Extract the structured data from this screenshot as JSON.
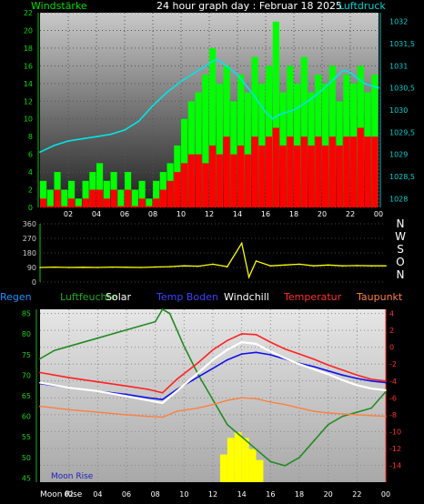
{
  "header": {
    "left_label": "Windstärke",
    "title": "24 hour graph day : Februar 18 2025",
    "right_label": "Luftdruck"
  },
  "direction_letters": [
    "N",
    "W",
    "S",
    "O",
    "N"
  ],
  "legend": {
    "regen": "Regen",
    "luftfeuchte": "Luftfeuchte",
    "solar": "Solar",
    "temp_boden": "Temp Boden",
    "windchill": "Windchill",
    "temperatur": "Temperatur",
    "taupunkt": "Taupunkt"
  },
  "moon_label": "Moon Rise",
  "colors": {
    "wind_gust": "#00ff00",
    "wind_avg": "#ff0000",
    "pressure": "#00e5e5",
    "direction": "#ffff00",
    "humidity": "#228b22",
    "solar": "#ffff00",
    "temp_boden": "#1010ee",
    "windchill": "#ffffff",
    "temperatur": "#ff2020",
    "taupunkt": "#ff7f3f"
  },
  "chart_data": [
    {
      "type": "bar",
      "name_left": "Windstärke",
      "name_right": "Luftdruck",
      "x_ticks": [
        "02",
        "04",
        "06",
        "08",
        "10",
        "12",
        "14",
        "16",
        "18",
        "20",
        "22",
        "00"
      ],
      "xlim": [
        0,
        24
      ],
      "ylim_left": [
        0,
        22
      ],
      "yticks_left": [
        0,
        2,
        4,
        6,
        8,
        10,
        12,
        14,
        16,
        18,
        20,
        22
      ],
      "ylim_right": [
        1027.8,
        1032.2
      ],
      "yticks_right": [
        "1028",
        "1028,5",
        "1029",
        "1029,5",
        "1030",
        "1030,5",
        "1031",
        "1031,5",
        "1032"
      ],
      "yticks_right_values": [
        1028,
        1028.5,
        1029,
        1029.5,
        1030,
        1030.5,
        1031,
        1031.5,
        1032
      ],
      "gust_series": [
        [
          0,
          3
        ],
        [
          0.5,
          2
        ],
        [
          1,
          4
        ],
        [
          1.5,
          2
        ],
        [
          2,
          3
        ],
        [
          2.5,
          1
        ],
        [
          3,
          3
        ],
        [
          3.5,
          4
        ],
        [
          4,
          5
        ],
        [
          4.5,
          3
        ],
        [
          5,
          4
        ],
        [
          5.5,
          2
        ],
        [
          6,
          4
        ],
        [
          6.5,
          2
        ],
        [
          7,
          3
        ],
        [
          7.5,
          1
        ],
        [
          8,
          3
        ],
        [
          8.5,
          4
        ],
        [
          9,
          5
        ],
        [
          9.5,
          7
        ],
        [
          10,
          10
        ],
        [
          10.5,
          12
        ],
        [
          11,
          13
        ],
        [
          11.5,
          15
        ],
        [
          12,
          18
        ],
        [
          12.5,
          14
        ],
        [
          13,
          16
        ],
        [
          13.5,
          12
        ],
        [
          14,
          15
        ],
        [
          14.5,
          13
        ],
        [
          15,
          17
        ],
        [
          15.5,
          14
        ],
        [
          16,
          16
        ],
        [
          16.5,
          21
        ],
        [
          17,
          13
        ],
        [
          17.5,
          16
        ],
        [
          18,
          14
        ],
        [
          18.5,
          17
        ],
        [
          19,
          13
        ],
        [
          19.5,
          15
        ],
        [
          20,
          14
        ],
        [
          20.5,
          16
        ],
        [
          21,
          12
        ],
        [
          21.5,
          15
        ],
        [
          22,
          14
        ],
        [
          22.5,
          16
        ],
        [
          23,
          13
        ],
        [
          23.5,
          15
        ]
      ],
      "avg_series": [
        [
          0,
          1
        ],
        [
          0.5,
          0
        ],
        [
          1,
          2
        ],
        [
          1.5,
          0
        ],
        [
          2,
          1
        ],
        [
          2.5,
          0
        ],
        [
          3,
          1
        ],
        [
          3.5,
          2
        ],
        [
          4,
          2
        ],
        [
          4.5,
          1
        ],
        [
          5,
          2
        ],
        [
          5.5,
          0
        ],
        [
          6,
          2
        ],
        [
          6.5,
          0
        ],
        [
          7,
          1
        ],
        [
          7.5,
          0
        ],
        [
          8,
          1
        ],
        [
          8.5,
          2
        ],
        [
          9,
          3
        ],
        [
          9.5,
          4
        ],
        [
          10,
          5
        ],
        [
          10.5,
          6
        ],
        [
          11,
          6
        ],
        [
          11.5,
          5
        ],
        [
          12,
          7
        ],
        [
          12.5,
          6
        ],
        [
          13,
          8
        ],
        [
          13.5,
          6
        ],
        [
          14,
          7
        ],
        [
          14.5,
          6
        ],
        [
          15,
          8
        ],
        [
          15.5,
          7
        ],
        [
          16,
          8
        ],
        [
          16.5,
          9
        ],
        [
          17,
          7
        ],
        [
          17.5,
          8
        ],
        [
          18,
          7
        ],
        [
          18.5,
          8
        ],
        [
          19,
          7
        ],
        [
          19.5,
          8
        ],
        [
          20,
          7
        ],
        [
          20.5,
          8
        ],
        [
          21,
          7
        ],
        [
          21.5,
          8
        ],
        [
          22,
          8
        ],
        [
          22.5,
          9
        ],
        [
          23,
          8
        ],
        [
          23.5,
          8
        ]
      ],
      "pressure_series": [
        [
          0,
          1029.05
        ],
        [
          1,
          1029.2
        ],
        [
          2,
          1029.3
        ],
        [
          3,
          1029.35
        ],
        [
          4,
          1029.4
        ],
        [
          5,
          1029.45
        ],
        [
          6,
          1029.55
        ],
        [
          7,
          1029.75
        ],
        [
          8,
          1030.1
        ],
        [
          9,
          1030.4
        ],
        [
          10,
          1030.65
        ],
        [
          11,
          1030.85
        ],
        [
          12,
          1031.05
        ],
        [
          12.5,
          1031.15
        ],
        [
          13,
          1031.05
        ],
        [
          14,
          1030.8
        ],
        [
          15,
          1030.4
        ],
        [
          16,
          1029.95
        ],
        [
          16.5,
          1029.8
        ],
        [
          17,
          1029.9
        ],
        [
          18,
          1030.0
        ],
        [
          19,
          1030.2
        ],
        [
          20,
          1030.45
        ],
        [
          21,
          1030.75
        ],
        [
          21.5,
          1030.9
        ],
        [
          22,
          1030.85
        ],
        [
          23,
          1030.6
        ],
        [
          24,
          1030.5
        ]
      ]
    },
    {
      "type": "scatter",
      "name": "Windrichtung",
      "ylim": [
        0,
        360
      ],
      "yticks": [
        0,
        90,
        180,
        270,
        360
      ],
      "series": [
        [
          0,
          90
        ],
        [
          1,
          92
        ],
        [
          2,
          90
        ],
        [
          3,
          91
        ],
        [
          4,
          90
        ],
        [
          5,
          92
        ],
        [
          6,
          91
        ],
        [
          7,
          90
        ],
        [
          8,
          93
        ],
        [
          9,
          95
        ],
        [
          10,
          100
        ],
        [
          11,
          98
        ],
        [
          12,
          110
        ],
        [
          13,
          95
        ],
        [
          14,
          240
        ],
        [
          14.5,
          30
        ],
        [
          15,
          130
        ],
        [
          16,
          100
        ],
        [
          17,
          105
        ],
        [
          18,
          110
        ],
        [
          19,
          100
        ],
        [
          20,
          105
        ],
        [
          21,
          100
        ],
        [
          22,
          102
        ],
        [
          23,
          100
        ],
        [
          24,
          100
        ]
      ]
    },
    {
      "type": "line",
      "x_ticks": [
        "02",
        "04",
        "06",
        "08",
        "10",
        "12",
        "14",
        "16",
        "18",
        "20",
        "22",
        "00"
      ],
      "ylim_left": [
        44,
        86
      ],
      "yticks_left": [
        45,
        50,
        55,
        60,
        65,
        70,
        75,
        80,
        85
      ],
      "ylim_right": [
        -16,
        4.5
      ],
      "yticks_right": [
        -14,
        -12,
        -10,
        -8,
        -6,
        -4,
        -2,
        0,
        2,
        4
      ],
      "humidity": [
        [
          0,
          74
        ],
        [
          1,
          76
        ],
        [
          2,
          77
        ],
        [
          3,
          78
        ],
        [
          4,
          79
        ],
        [
          5,
          80
        ],
        [
          6,
          81
        ],
        [
          7,
          82
        ],
        [
          8,
          83
        ],
        [
          8.5,
          86
        ],
        [
          9,
          85
        ],
        [
          10,
          77
        ],
        [
          11,
          70
        ],
        [
          12,
          64
        ],
        [
          13,
          58
        ],
        [
          14,
          55
        ],
        [
          15,
          52
        ],
        [
          16,
          49
        ],
        [
          17,
          48
        ],
        [
          18,
          50
        ],
        [
          19,
          54
        ],
        [
          20,
          58
        ],
        [
          21,
          60
        ],
        [
          22,
          61
        ],
        [
          23,
          62
        ],
        [
          24,
          66
        ]
      ],
      "solar": [
        [
          12,
          0
        ],
        [
          12.5,
          5
        ],
        [
          13,
          8
        ],
        [
          13.5,
          9
        ],
        [
          14,
          8
        ],
        [
          14.5,
          6
        ],
        [
          15,
          4
        ],
        [
          15.5,
          0
        ]
      ],
      "temp_boden": [
        [
          0,
          -4.3
        ],
        [
          2,
          -4.8
        ],
        [
          4,
          -5.2
        ],
        [
          6,
          -5.6
        ],
        [
          7.5,
          -6.0
        ],
        [
          8.5,
          -6.2
        ],
        [
          9.5,
          -5.0
        ],
        [
          11,
          -3.5
        ],
        [
          12,
          -2.5
        ],
        [
          13,
          -1.5
        ],
        [
          14,
          -0.8
        ],
        [
          15,
          -0.6
        ],
        [
          16,
          -0.9
        ],
        [
          17,
          -1.4
        ],
        [
          18,
          -1.9
        ],
        [
          19,
          -2.3
        ],
        [
          20,
          -2.8
        ],
        [
          21,
          -3.3
        ],
        [
          22,
          -3.7
        ],
        [
          23,
          -4.0
        ],
        [
          24,
          -4.2
        ]
      ],
      "windchill": [
        [
          0,
          -4.2
        ],
        [
          2,
          -4.8
        ],
        [
          4,
          -5.2
        ],
        [
          6,
          -5.8
        ],
        [
          7.5,
          -6.3
        ],
        [
          8.5,
          -6.6
        ],
        [
          9.5,
          -5.2
        ],
        [
          11,
          -3.0
        ],
        [
          12,
          -1.5
        ],
        [
          13,
          -0.3
        ],
        [
          14,
          0.6
        ],
        [
          15,
          0.4
        ],
        [
          16,
          -0.5
        ],
        [
          17,
          -1.3
        ],
        [
          18,
          -2.0
        ],
        [
          19,
          -2.6
        ],
        [
          20,
          -3.2
        ],
        [
          21,
          -3.9
        ],
        [
          22,
          -4.5
        ],
        [
          23,
          -4.9
        ],
        [
          24,
          -5.1
        ]
      ],
      "temperatur": [
        [
          0,
          -3.0
        ],
        [
          2,
          -3.6
        ],
        [
          4,
          -4.1
        ],
        [
          6,
          -4.6
        ],
        [
          7.5,
          -5.0
        ],
        [
          8.5,
          -5.4
        ],
        [
          9.5,
          -3.8
        ],
        [
          11,
          -1.8
        ],
        [
          12,
          -0.3
        ],
        [
          13,
          0.8
        ],
        [
          14,
          1.6
        ],
        [
          15,
          1.5
        ],
        [
          16,
          0.6
        ],
        [
          17,
          -0.2
        ],
        [
          18,
          -0.8
        ],
        [
          19,
          -1.4
        ],
        [
          20,
          -2.1
        ],
        [
          21,
          -2.7
        ],
        [
          22,
          -3.3
        ],
        [
          23,
          -3.8
        ],
        [
          24,
          -4.0
        ]
      ],
      "taupunkt": [
        [
          0,
          -7.0
        ],
        [
          2,
          -7.4
        ],
        [
          4,
          -7.7
        ],
        [
          6,
          -8.0
        ],
        [
          7.5,
          -8.2
        ],
        [
          8.5,
          -8.3
        ],
        [
          9.5,
          -7.6
        ],
        [
          11,
          -7.2
        ],
        [
          12,
          -6.8
        ],
        [
          13,
          -6.3
        ],
        [
          14,
          -6.0
        ],
        [
          15,
          -6.1
        ],
        [
          16,
          -6.5
        ],
        [
          17,
          -6.8
        ],
        [
          18,
          -7.2
        ],
        [
          19,
          -7.6
        ],
        [
          20,
          -7.8
        ],
        [
          21,
          -7.9
        ],
        [
          22,
          -8.0
        ],
        [
          23,
          -8.1
        ],
        [
          24,
          -8.2
        ]
      ]
    }
  ]
}
